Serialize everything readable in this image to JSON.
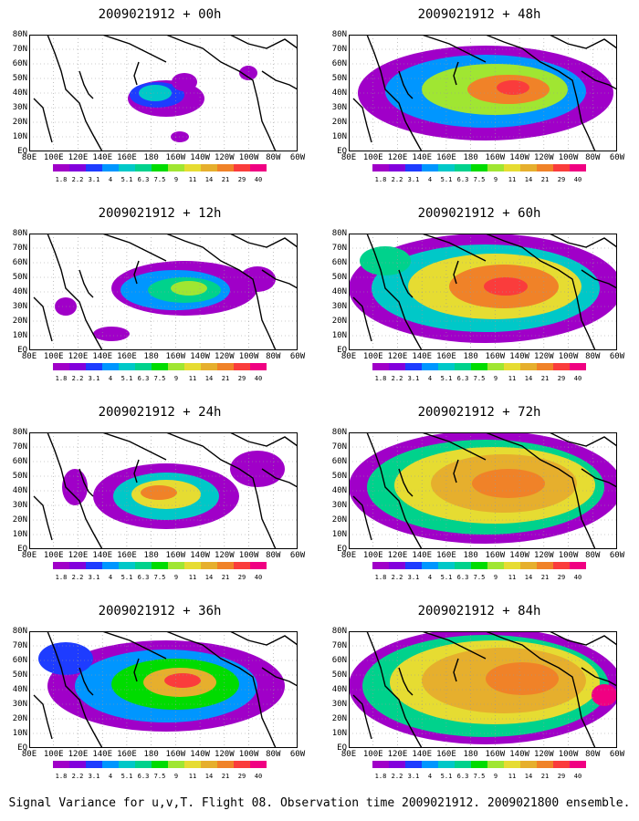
{
  "caption": "Signal Variance for u,v,T. Flight 08. Observation time 2009021912. 2009021800 ensemble.",
  "lat_labels": [
    "80N",
    "70N",
    "60N",
    "50N",
    "40N",
    "30N",
    "20N",
    "10N",
    "EQ"
  ],
  "lon_labels": [
    "80E",
    "100E",
    "120E",
    "140E",
    "160E",
    "180",
    "160W",
    "140W",
    "120W",
    "100W",
    "80W",
    "60W"
  ],
  "colorbar": {
    "ticks": [
      "1.8",
      "2.2",
      "3.1",
      "4",
      "5.1",
      "6.3",
      "7.5",
      "9",
      "11",
      "14",
      "21",
      "29",
      "40"
    ],
    "colors": [
      "#a000c8",
      "#8200dc",
      "#1e3cff",
      "#0096ff",
      "#00c8c8",
      "#00d28c",
      "#00dc00",
      "#a0e632",
      "#e6dc32",
      "#e6af2d",
      "#f08228",
      "#fa3c3c",
      "#f00082"
    ]
  },
  "panels": [
    {
      "title": "2009021912 + 00h",
      "level": 0
    },
    {
      "title": "2009021912 + 48h",
      "level": 4
    },
    {
      "title": "2009021912 + 12h",
      "level": 1
    },
    {
      "title": "2009021912 + 60h",
      "level": 5
    },
    {
      "title": "2009021912 + 24h",
      "level": 2
    },
    {
      "title": "2009021912 + 72h",
      "level": 6
    },
    {
      "title": "2009021912 + 36h",
      "level": 3
    },
    {
      "title": "2009021912 + 84h",
      "level": 7
    }
  ]
}
